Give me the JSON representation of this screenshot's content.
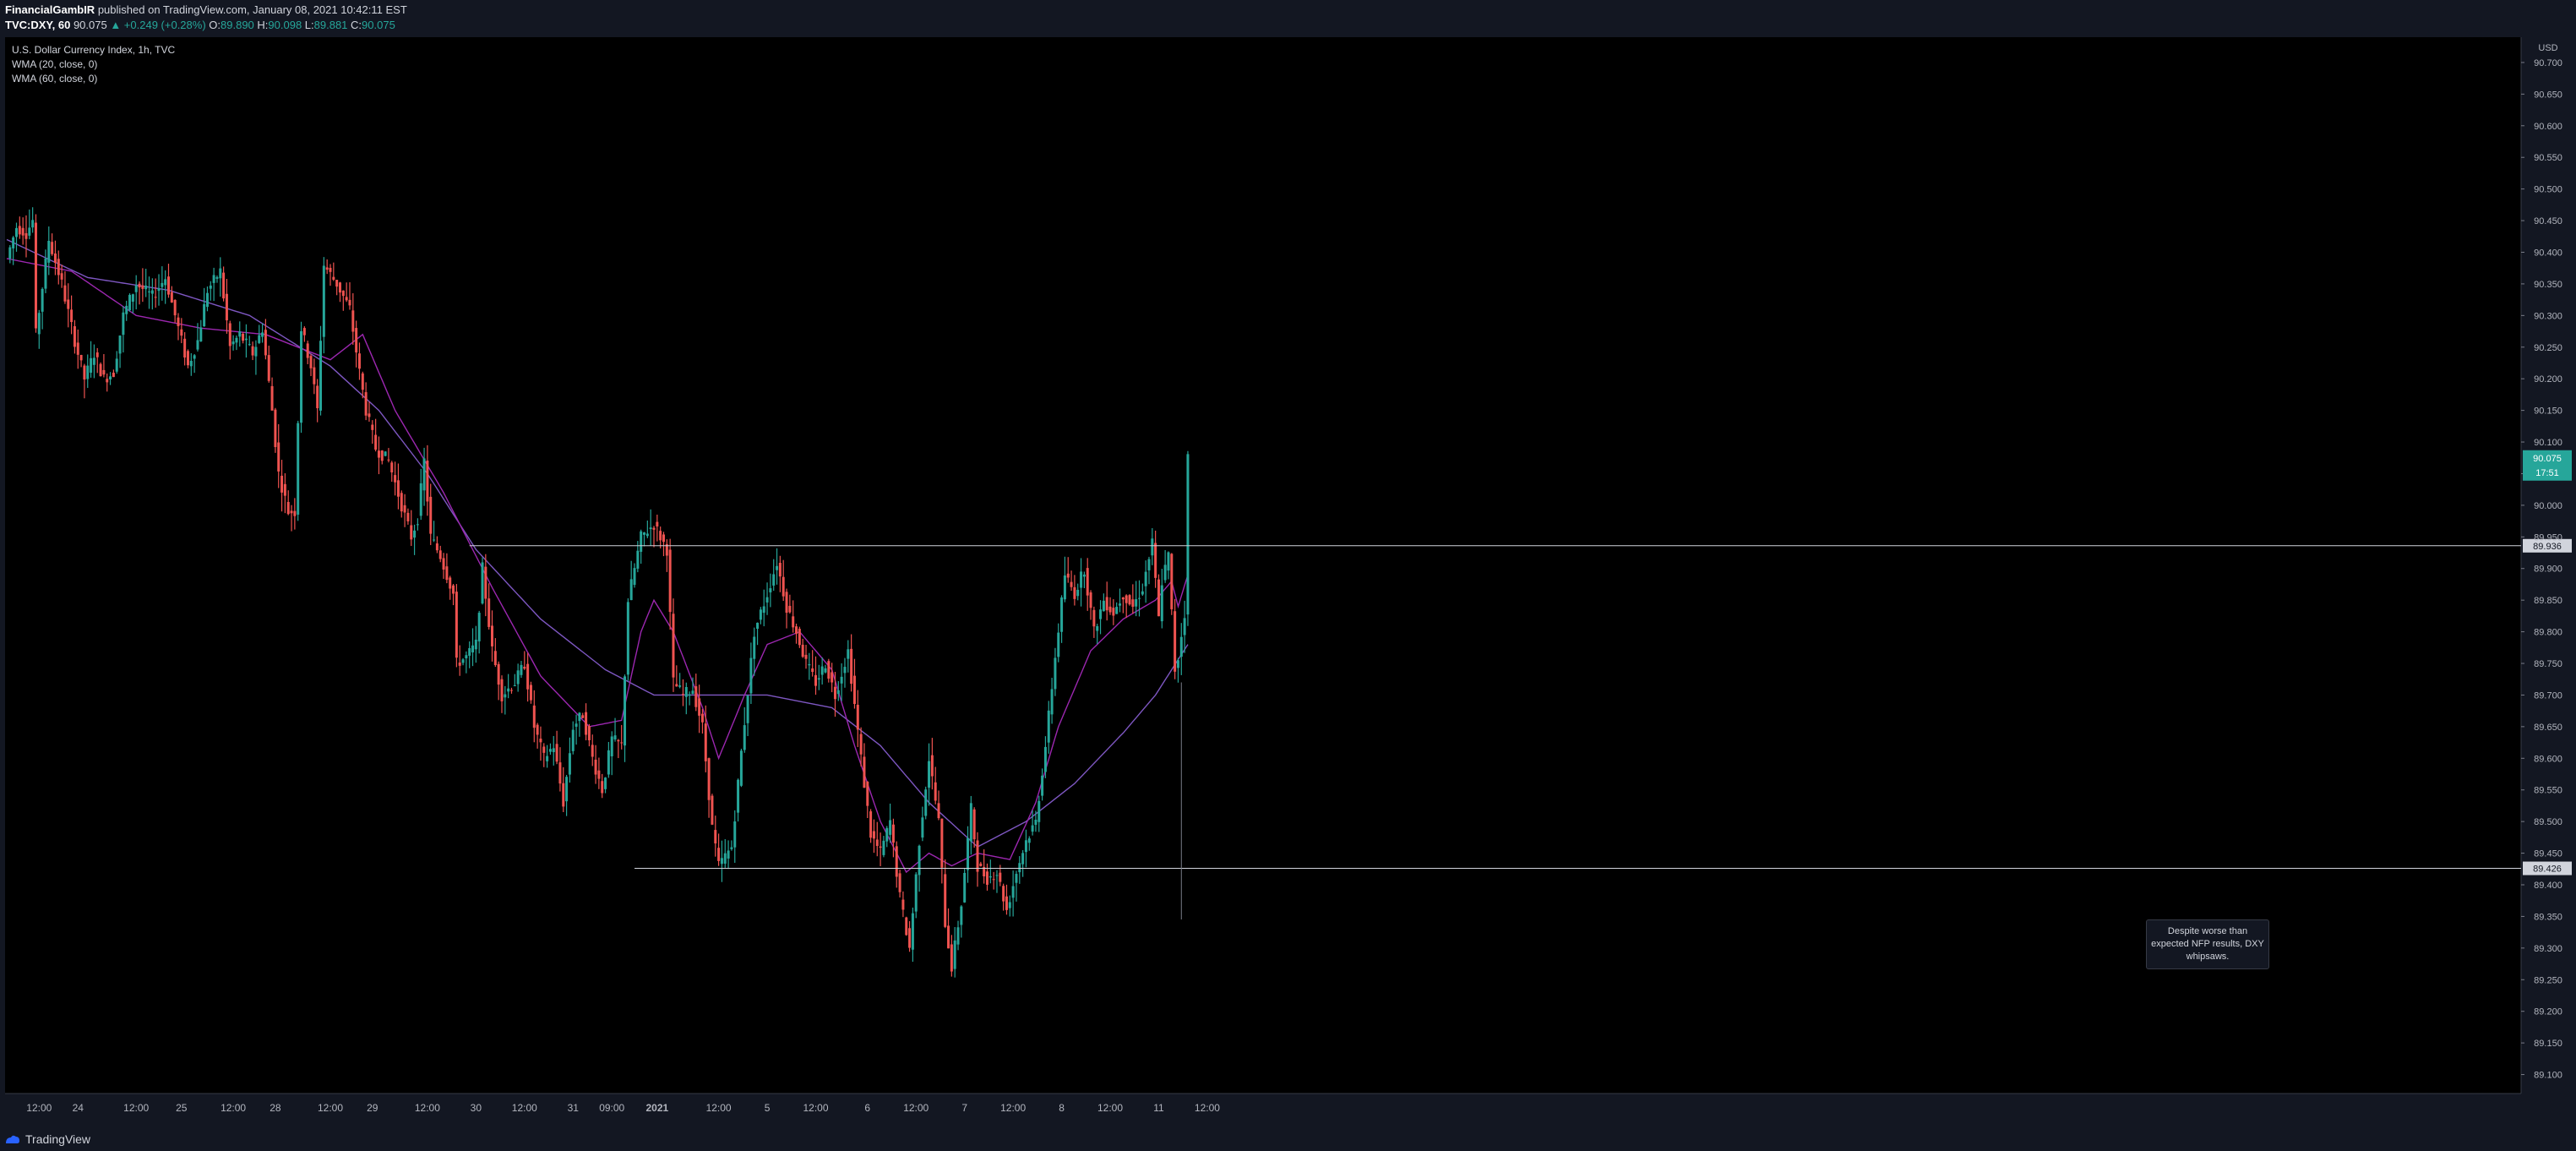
{
  "header": {
    "author": "FinancialGambIR",
    "published_text": "published on TradingView.com, January 08, 2021 10:42:11 EST",
    "symbol": "TVC:DXY, 60",
    "last": "90.075",
    "change": "▲ +0.249 (+0.28%)",
    "open_label": "O:",
    "open": "89.890",
    "high_label": "H:",
    "high": "90.098",
    "low_label": "L:",
    "low": "89.881",
    "close_label": "C:",
    "close": "90.075"
  },
  "legend": {
    "title": "U.S. Dollar Currency Index, 1h, TVC",
    "wma20": "WMA (20, close, 0)",
    "wma60": "WMA (60, close, 0)"
  },
  "annotation": "Despite worse than expected NFP results, DXY whipsaws.",
  "footer": {
    "brand": "TradingView"
  },
  "colors": {
    "bg": "#000000",
    "up": "#26a69a",
    "down": "#ef5350",
    "wma20": "#9c27b0",
    "wma60": "#7e57c2"
  },
  "chart_data": {
    "type": "candlestick",
    "title": "U.S. Dollar Currency Index, 1h, TVC",
    "currency_label": "USD",
    "ylim": [
      89.07,
      90.74
    ],
    "y_ticks": [
      "90.700",
      "90.650",
      "90.600",
      "90.550",
      "90.500",
      "90.450",
      "90.400",
      "90.350",
      "90.300",
      "90.250",
      "90.200",
      "90.150",
      "90.100",
      "90.050",
      "90.000",
      "89.950",
      "89.900",
      "89.850",
      "89.800",
      "89.750",
      "89.700",
      "89.650",
      "89.600",
      "89.550",
      "89.500",
      "89.450",
      "89.400",
      "89.350",
      "89.300",
      "89.250",
      "89.200",
      "89.150",
      "89.100"
    ],
    "x_ticks": [
      {
        "label": "12:00",
        "t": 10
      },
      {
        "label": "24",
        "t": 22
      },
      {
        "label": "12:00",
        "t": 40
      },
      {
        "label": "25",
        "t": 54
      },
      {
        "label": "12:00",
        "t": 70
      },
      {
        "label": "28",
        "t": 83
      },
      {
        "label": "12:00",
        "t": 100
      },
      {
        "label": "29",
        "t": 113
      },
      {
        "label": "12:00",
        "t": 130
      },
      {
        "label": "30",
        "t": 145
      },
      {
        "label": "12:00",
        "t": 160
      },
      {
        "label": "31",
        "t": 175
      },
      {
        "label": "09:00",
        "t": 187
      },
      {
        "label": "2021",
        "t": 201
      },
      {
        "label": "12:00",
        "t": 220
      },
      {
        "label": "5",
        "t": 235
      },
      {
        "label": "12:00",
        "t": 250
      },
      {
        "label": "6",
        "t": 266
      },
      {
        "label": "12:00",
        "t": 281
      },
      {
        "label": "7",
        "t": 296
      },
      {
        "label": "12:00",
        "t": 311
      },
      {
        "label": "8",
        "t": 326
      },
      {
        "label": "12:00",
        "t": 341
      },
      {
        "label": "11",
        "t": 356
      },
      {
        "label": "12:00",
        "t": 371
      }
    ],
    "level_lines": [
      {
        "value": 89.936,
        "label": "89.936",
        "from_t": 143
      },
      {
        "value": 89.426,
        "label": "89.426",
        "from_t": 194
      }
    ],
    "last_price": {
      "value": 90.075,
      "label": "90.075",
      "countdown": "17:51"
    },
    "anchors": [
      {
        "t": 0,
        "c": 90.39
      },
      {
        "t": 3,
        "c": 90.44
      },
      {
        "t": 6,
        "c": 90.43
      },
      {
        "t": 8,
        "c": 90.45
      },
      {
        "t": 9,
        "c": 90.27
      },
      {
        "t": 13,
        "c": 90.42
      },
      {
        "t": 17,
        "c": 90.35
      },
      {
        "t": 21,
        "c": 90.26
      },
      {
        "t": 24,
        "c": 90.2
      },
      {
        "t": 27,
        "c": 90.24
      },
      {
        "t": 30,
        "c": 90.2
      },
      {
        "t": 33,
        "c": 90.21
      },
      {
        "t": 36,
        "c": 90.3
      },
      {
        "t": 40,
        "c": 90.35
      },
      {
        "t": 45,
        "c": 90.33
      },
      {
        "t": 49,
        "c": 90.36
      },
      {
        "t": 53,
        "c": 90.28
      },
      {
        "t": 56,
        "c": 90.22
      },
      {
        "t": 59,
        "c": 90.26
      },
      {
        "t": 62,
        "c": 90.34
      },
      {
        "t": 66,
        "c": 90.37
      },
      {
        "t": 69,
        "c": 90.25
      },
      {
        "t": 72,
        "c": 90.27
      },
      {
        "t": 76,
        "c": 90.24
      },
      {
        "t": 79,
        "c": 90.28
      },
      {
        "t": 82,
        "c": 90.15
      },
      {
        "t": 84,
        "c": 90.05
      },
      {
        "t": 87,
        "c": 89.99
      },
      {
        "t": 89,
        "c": 89.99
      },
      {
        "t": 91,
        "c": 90.28
      },
      {
        "t": 94,
        "c": 90.22
      },
      {
        "t": 96,
        "c": 90.15
      },
      {
        "t": 98,
        "c": 90.38
      },
      {
        "t": 102,
        "c": 90.35
      },
      {
        "t": 104,
        "c": 90.33
      },
      {
        "t": 106,
        "c": 90.31
      },
      {
        "t": 109,
        "c": 90.21
      },
      {
        "t": 111,
        "c": 90.15
      },
      {
        "t": 114,
        "c": 90.09
      },
      {
        "t": 118,
        "c": 90.07
      },
      {
        "t": 122,
        "c": 90.0
      },
      {
        "t": 125,
        "c": 89.95
      },
      {
        "t": 127,
        "c": 89.98
      },
      {
        "t": 129,
        "c": 90.07
      },
      {
        "t": 131,
        "c": 89.95
      },
      {
        "t": 134,
        "c": 89.92
      },
      {
        "t": 138,
        "c": 89.86
      },
      {
        "t": 139,
        "c": 89.75
      },
      {
        "t": 142,
        "c": 89.76
      },
      {
        "t": 145,
        "c": 89.78
      },
      {
        "t": 147,
        "c": 89.9
      },
      {
        "t": 150,
        "c": 89.77
      },
      {
        "t": 153,
        "c": 89.7
      },
      {
        "t": 157,
        "c": 89.72
      },
      {
        "t": 160,
        "c": 89.75
      },
      {
        "t": 163,
        "c": 89.65
      },
      {
        "t": 166,
        "c": 89.6
      },
      {
        "t": 169,
        "c": 89.62
      },
      {
        "t": 172,
        "c": 89.53
      },
      {
        "t": 175,
        "c": 89.65
      },
      {
        "t": 178,
        "c": 89.67
      },
      {
        "t": 181,
        "c": 89.6
      },
      {
        "t": 184,
        "c": 89.55
      },
      {
        "t": 187,
        "c": 89.63
      },
      {
        "t": 190,
        "c": 89.62
      },
      {
        "t": 192,
        "c": 89.85
      },
      {
        "t": 196,
        "c": 89.95
      },
      {
        "t": 200,
        "c": 89.97
      },
      {
        "t": 204,
        "c": 89.93
      },
      {
        "t": 206,
        "c": 89.72
      },
      {
        "t": 209,
        "c": 89.7
      },
      {
        "t": 212,
        "c": 89.71
      },
      {
        "t": 215,
        "c": 89.65
      },
      {
        "t": 218,
        "c": 89.49
      },
      {
        "t": 220,
        "c": 89.43
      },
      {
        "t": 224,
        "c": 89.46
      },
      {
        "t": 227,
        "c": 89.61
      },
      {
        "t": 231,
        "c": 89.8
      },
      {
        "t": 235,
        "c": 89.86
      },
      {
        "t": 238,
        "c": 89.91
      },
      {
        "t": 241,
        "c": 89.84
      },
      {
        "t": 244,
        "c": 89.8
      },
      {
        "t": 247,
        "c": 89.75
      },
      {
        "t": 250,
        "c": 89.72
      },
      {
        "t": 253,
        "c": 89.75
      },
      {
        "t": 256,
        "c": 89.7
      },
      {
        "t": 260,
        "c": 89.77
      },
      {
        "t": 264,
        "c": 89.6
      },
      {
        "t": 267,
        "c": 89.48
      },
      {
        "t": 270,
        "c": 89.45
      },
      {
        "t": 273,
        "c": 89.5
      },
      {
        "t": 276,
        "c": 89.38
      },
      {
        "t": 279,
        "c": 89.3
      },
      {
        "t": 282,
        "c": 89.47
      },
      {
        "t": 285,
        "c": 89.6
      },
      {
        "t": 288,
        "c": 89.5
      },
      {
        "t": 290,
        "c": 89.34
      },
      {
        "t": 292,
        "c": 89.27
      },
      {
        "t": 295,
        "c": 89.37
      },
      {
        "t": 298,
        "c": 89.52
      },
      {
        "t": 300,
        "c": 89.43
      },
      {
        "t": 303,
        "c": 89.41
      },
      {
        "t": 306,
        "c": 89.42
      },
      {
        "t": 309,
        "c": 89.36
      },
      {
        "t": 312,
        "c": 89.42
      },
      {
        "t": 315,
        "c": 89.47
      },
      {
        "t": 318,
        "c": 89.5
      },
      {
        "t": 321,
        "c": 89.62
      },
      {
        "t": 324,
        "c": 89.76
      },
      {
        "t": 327,
        "c": 89.89
      },
      {
        "t": 330,
        "c": 89.86
      },
      {
        "t": 333,
        "c": 89.9
      },
      {
        "t": 336,
        "c": 89.8
      },
      {
        "t": 339,
        "c": 89.85
      },
      {
        "t": 342,
        "c": 89.83
      },
      {
        "t": 345,
        "c": 89.86
      },
      {
        "t": 348,
        "c": 89.84
      },
      {
        "t": 351,
        "c": 89.87
      },
      {
        "t": 354,
        "c": 89.94
      },
      {
        "t": 356,
        "c": 89.82
      },
      {
        "t": 357,
        "c": 89.88
      },
      {
        "t": 359,
        "c": 89.92
      },
      {
        "t": 361,
        "c": 89.74
      },
      {
        "t": 362,
        "c": 89.76
      },
      {
        "t": 364,
        "c": 89.83
      },
      {
        "t": 365,
        "c": 90.075
      }
    ],
    "wma20_anchors": [
      {
        "t": 0,
        "c": 90.39
      },
      {
        "t": 20,
        "c": 90.37
      },
      {
        "t": 40,
        "c": 90.3
      },
      {
        "t": 60,
        "c": 90.28
      },
      {
        "t": 80,
        "c": 90.27
      },
      {
        "t": 100,
        "c": 90.23
      },
      {
        "t": 110,
        "c": 90.27
      },
      {
        "t": 120,
        "c": 90.15
      },
      {
        "t": 135,
        "c": 90.02
      },
      {
        "t": 150,
        "c": 89.87
      },
      {
        "t": 165,
        "c": 89.73
      },
      {
        "t": 180,
        "c": 89.65
      },
      {
        "t": 190,
        "c": 89.66
      },
      {
        "t": 196,
        "c": 89.8
      },
      {
        "t": 200,
        "c": 89.85
      },
      {
        "t": 206,
        "c": 89.8
      },
      {
        "t": 215,
        "c": 89.68
      },
      {
        "t": 220,
        "c": 89.6
      },
      {
        "t": 228,
        "c": 89.7
      },
      {
        "t": 235,
        "c": 89.78
      },
      {
        "t": 245,
        "c": 89.8
      },
      {
        "t": 255,
        "c": 89.74
      },
      {
        "t": 262,
        "c": 89.62
      },
      {
        "t": 270,
        "c": 89.5
      },
      {
        "t": 278,
        "c": 89.42
      },
      {
        "t": 285,
        "c": 89.45
      },
      {
        "t": 292,
        "c": 89.43
      },
      {
        "t": 300,
        "c": 89.45
      },
      {
        "t": 310,
        "c": 89.44
      },
      {
        "t": 318,
        "c": 89.53
      },
      {
        "t": 325,
        "c": 89.65
      },
      {
        "t": 335,
        "c": 89.77
      },
      {
        "t": 345,
        "c": 89.82
      },
      {
        "t": 355,
        "c": 89.85
      },
      {
        "t": 360,
        "c": 89.88
      },
      {
        "t": 362,
        "c": 89.84
      },
      {
        "t": 365,
        "c": 89.89
      }
    ],
    "wma60_anchors": [
      {
        "t": 0,
        "c": 90.42
      },
      {
        "t": 25,
        "c": 90.36
      },
      {
        "t": 50,
        "c": 90.34
      },
      {
        "t": 75,
        "c": 90.3
      },
      {
        "t": 100,
        "c": 90.22
      },
      {
        "t": 115,
        "c": 90.15
      },
      {
        "t": 130,
        "c": 90.05
      },
      {
        "t": 145,
        "c": 89.93
      },
      {
        "t": 165,
        "c": 89.82
      },
      {
        "t": 185,
        "c": 89.74
      },
      {
        "t": 200,
        "c": 89.7
      },
      {
        "t": 215,
        "c": 89.7
      },
      {
        "t": 235,
        "c": 89.7
      },
      {
        "t": 255,
        "c": 89.68
      },
      {
        "t": 270,
        "c": 89.62
      },
      {
        "t": 285,
        "c": 89.53
      },
      {
        "t": 300,
        "c": 89.46
      },
      {
        "t": 315,
        "c": 89.5
      },
      {
        "t": 330,
        "c": 89.56
      },
      {
        "t": 345,
        "c": 89.64
      },
      {
        "t": 355,
        "c": 89.7
      },
      {
        "t": 365,
        "c": 89.78
      }
    ]
  }
}
